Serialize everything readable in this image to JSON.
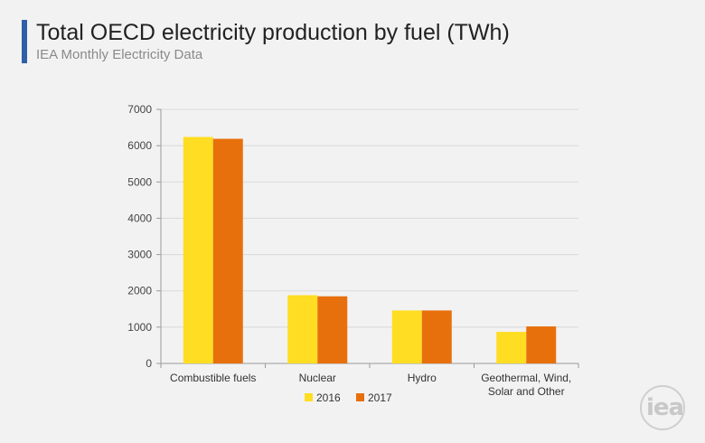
{
  "header": {
    "title": "Total OECD electricity production by fuel (TWh)",
    "subtitle": "IEA Monthly Electricity Data"
  },
  "logo": {
    "text": "iea"
  },
  "chart_data": {
    "type": "bar",
    "categories": [
      "Combustible fuels",
      "Nuclear",
      "Hydro",
      "Geothermal, Wind, Solar and Other"
    ],
    "category_label_lines": [
      [
        "Combustible fuels"
      ],
      [
        "Nuclear"
      ],
      [
        "Hydro"
      ],
      [
        "Geothermal, Wind,",
        "Solar and Other"
      ]
    ],
    "series": [
      {
        "name": "2016",
        "color": "#ffdd22",
        "values": [
          6240,
          1880,
          1460,
          870
        ]
      },
      {
        "name": "2017",
        "color": "#e8700c",
        "values": [
          6190,
          1850,
          1460,
          1020
        ]
      }
    ],
    "ylim": [
      0,
      7000
    ],
    "yticks": [
      0,
      1000,
      2000,
      3000,
      4000,
      5000,
      6000,
      7000
    ],
    "grid": true,
    "legend": "bottom",
    "title": "Total OECD electricity production by fuel (TWh)",
    "subtitle": "IEA Monthly Electricity Data"
  }
}
